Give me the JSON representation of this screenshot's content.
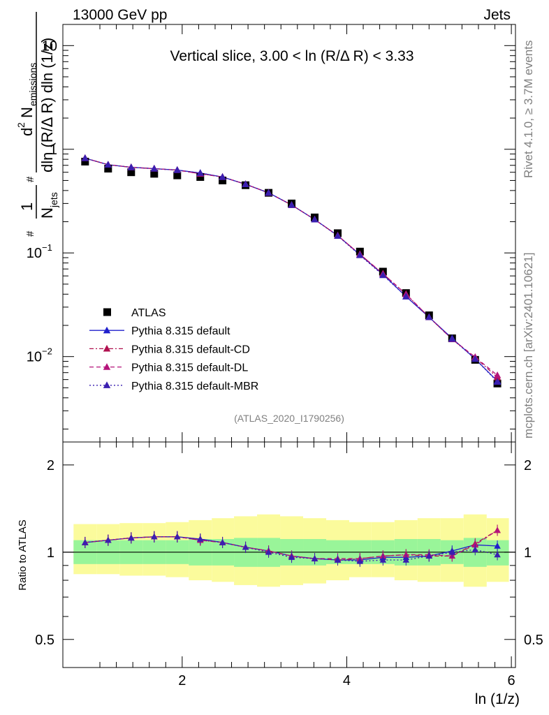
{
  "header": {
    "left": "13000 GeV pp",
    "right": "Jets"
  },
  "side_labels": {
    "top": "Rivet 4.1.0, ≥ 3.7M events",
    "bottom": "mcplots.cern.ch [arXiv:2401.10621]"
  },
  "colors": {
    "atlas": "#000000",
    "default": "#1f1fcc",
    "cd": "#b0104f",
    "dl": "#b5137a",
    "mbr": "#3a1fb0",
    "band_inner": "#99f599",
    "band_outer": "#fbfb9c"
  },
  "chart_data": [
    {
      "type": "scatter",
      "title": "Vertical slice, 3.00 < ln (R/Δ R) < 3.33",
      "ylabel_parts": {
        "frac1_num": "1",
        "frac1_den_main": "N",
        "frac1_den_sub": "jets",
        "d2": "d",
        "d2_sup": "2",
        "num_main": "N",
        "num_sub": "emissions",
        "den": "dln (R/Δ R) dln (1/z)",
        "hash": "#"
      },
      "yscale": "log",
      "ylim": [
        0.0015,
        16
      ],
      "xlim": [
        0.55,
        6.05
      ],
      "yticks": [
        {
          "v": 10,
          "base": "10",
          "exp": ""
        },
        {
          "v": 1,
          "base": "1",
          "exp": ""
        },
        {
          "v": 0.1,
          "base": "10",
          "exp": "−1"
        },
        {
          "v": 0.01,
          "base": "10",
          "exp": "−2"
        }
      ],
      "x": [
        0.82,
        1.1,
        1.38,
        1.66,
        1.94,
        2.22,
        2.49,
        2.77,
        3.05,
        3.33,
        3.61,
        3.89,
        4.16,
        4.44,
        4.72,
        5.0,
        5.28,
        5.56,
        5.83
      ],
      "series": [
        {
          "name": "ATLAS",
          "key": "atlas",
          "marker": "square",
          "style": "none",
          "values": [
            0.76,
            0.65,
            0.6,
            0.58,
            0.56,
            0.54,
            0.5,
            0.45,
            0.38,
            0.3,
            0.22,
            0.155,
            0.103,
            0.066,
            0.041,
            0.025,
            0.015,
            0.0093,
            0.0055
          ]
        },
        {
          "name": "Pythia 8.315 default",
          "key": "default",
          "marker": "triangle",
          "style": "solid",
          "values": [
            0.82,
            0.71,
            0.67,
            0.65,
            0.63,
            0.59,
            0.54,
            0.46,
            0.38,
            0.29,
            0.21,
            0.147,
            0.096,
            0.062,
            0.038,
            0.024,
            0.015,
            0.0095,
            0.0058
          ]
        },
        {
          "name": "Pythia 8.315 default-CD",
          "key": "cd",
          "marker": "triangle",
          "style": "dashdot",
          "values": [
            0.82,
            0.71,
            0.67,
            0.65,
            0.63,
            0.58,
            0.54,
            0.46,
            0.38,
            0.29,
            0.21,
            0.147,
            0.097,
            0.063,
            0.04,
            0.024,
            0.0147,
            0.0098,
            0.0063
          ]
        },
        {
          "name": "Pythia 8.315 default-DL",
          "key": "dl",
          "marker": "triangle",
          "style": "dashed",
          "values": [
            0.82,
            0.71,
            0.67,
            0.65,
            0.63,
            0.58,
            0.54,
            0.46,
            0.38,
            0.29,
            0.21,
            0.147,
            0.097,
            0.063,
            0.04,
            0.024,
            0.0147,
            0.0099,
            0.0066
          ]
        },
        {
          "name": "Pythia 8.315 default-MBR",
          "key": "mbr",
          "marker": "triangle",
          "style": "dotted",
          "values": [
            0.82,
            0.71,
            0.67,
            0.65,
            0.63,
            0.59,
            0.54,
            0.46,
            0.38,
            0.29,
            0.21,
            0.146,
            0.095,
            0.061,
            0.038,
            0.024,
            0.0148,
            0.0095,
            0.0057
          ]
        }
      ],
      "annotation": "(ATLAS_2020_I1790256)",
      "legend": "middle-left"
    },
    {
      "type": "line",
      "ylabel": "Ratio to ATLAS",
      "xlabel": "ln (1/z)",
      "ylim": [
        0.4,
        2.4
      ],
      "yscale": "log",
      "yticks": [
        {
          "v": 2,
          "label": "2"
        },
        {
          "v": 1,
          "label": "1"
        },
        {
          "v": 0.5,
          "label": "0.5"
        }
      ],
      "xticks": [
        {
          "v": 2,
          "label": "2"
        },
        {
          "v": 4,
          "label": "4"
        },
        {
          "v": 6,
          "label": "6"
        }
      ],
      "x_edges": [
        0.68,
        0.96,
        1.24,
        1.52,
        1.8,
        2.08,
        2.36,
        2.63,
        2.91,
        3.19,
        3.47,
        3.75,
        4.03,
        4.3,
        4.58,
        4.86,
        5.14,
        5.42,
        5.7,
        5.97
      ],
      "band_inner_lo": [
        0.91,
        0.91,
        0.91,
        0.91,
        0.91,
        0.9,
        0.9,
        0.89,
        0.89,
        0.9,
        0.9,
        0.91,
        0.91,
        0.91,
        0.9,
        0.9,
        0.91,
        0.89,
        0.9
      ],
      "band_inner_hi": [
        1.1,
        1.1,
        1.1,
        1.1,
        1.1,
        1.11,
        1.11,
        1.12,
        1.12,
        1.11,
        1.11,
        1.1,
        1.1,
        1.1,
        1.11,
        1.11,
        1.1,
        1.12,
        1.1
      ],
      "band_outer_lo": [
        0.84,
        0.84,
        0.83,
        0.83,
        0.82,
        0.8,
        0.79,
        0.77,
        0.76,
        0.77,
        0.78,
        0.8,
        0.82,
        0.82,
        0.8,
        0.79,
        0.79,
        0.76,
        0.79
      ],
      "band_outer_hi": [
        1.25,
        1.25,
        1.26,
        1.26,
        1.27,
        1.29,
        1.31,
        1.33,
        1.35,
        1.33,
        1.31,
        1.29,
        1.27,
        1.27,
        1.29,
        1.31,
        1.31,
        1.35,
        1.31
      ],
      "x": [
        0.82,
        1.1,
        1.38,
        1.66,
        1.94,
        2.22,
        2.49,
        2.77,
        3.05,
        3.33,
        3.61,
        3.89,
        4.16,
        4.44,
        4.72,
        5.0,
        5.28,
        5.56,
        5.83
      ],
      "series": [
        {
          "name": "Pythia 8.315 default",
          "key": "default",
          "style": "solid",
          "values": [
            1.08,
            1.1,
            1.12,
            1.13,
            1.13,
            1.11,
            1.08,
            1.04,
            1.01,
            0.97,
            0.95,
            0.94,
            0.94,
            0.96,
            0.96,
            0.97,
            1.01,
            1.06,
            1.05
          ]
        },
        {
          "name": "Pythia 8.315 default-CD",
          "key": "cd",
          "style": "dashdot",
          "values": [
            1.08,
            1.1,
            1.12,
            1.13,
            1.13,
            1.1,
            1.08,
            1.04,
            1.01,
            0.97,
            0.95,
            0.94,
            0.95,
            0.97,
            0.98,
            0.97,
            0.97,
            1.07,
            1.19
          ]
        },
        {
          "name": "Pythia 8.315 default-DL",
          "key": "dl",
          "style": "dashed",
          "values": [
            1.08,
            1.1,
            1.12,
            1.13,
            1.13,
            1.1,
            1.08,
            1.04,
            1.01,
            0.97,
            0.95,
            0.95,
            0.95,
            0.97,
            0.98,
            0.98,
            0.97,
            1.06,
            1.19
          ]
        },
        {
          "name": "Pythia 8.315 default-MBR",
          "key": "mbr",
          "style": "dotted",
          "values": [
            1.08,
            1.1,
            1.12,
            1.13,
            1.13,
            1.11,
            1.08,
            1.04,
            1.0,
            0.96,
            0.95,
            0.94,
            0.93,
            0.94,
            0.94,
            0.97,
            1.0,
            1.02,
            0.98
          ]
        }
      ]
    }
  ]
}
